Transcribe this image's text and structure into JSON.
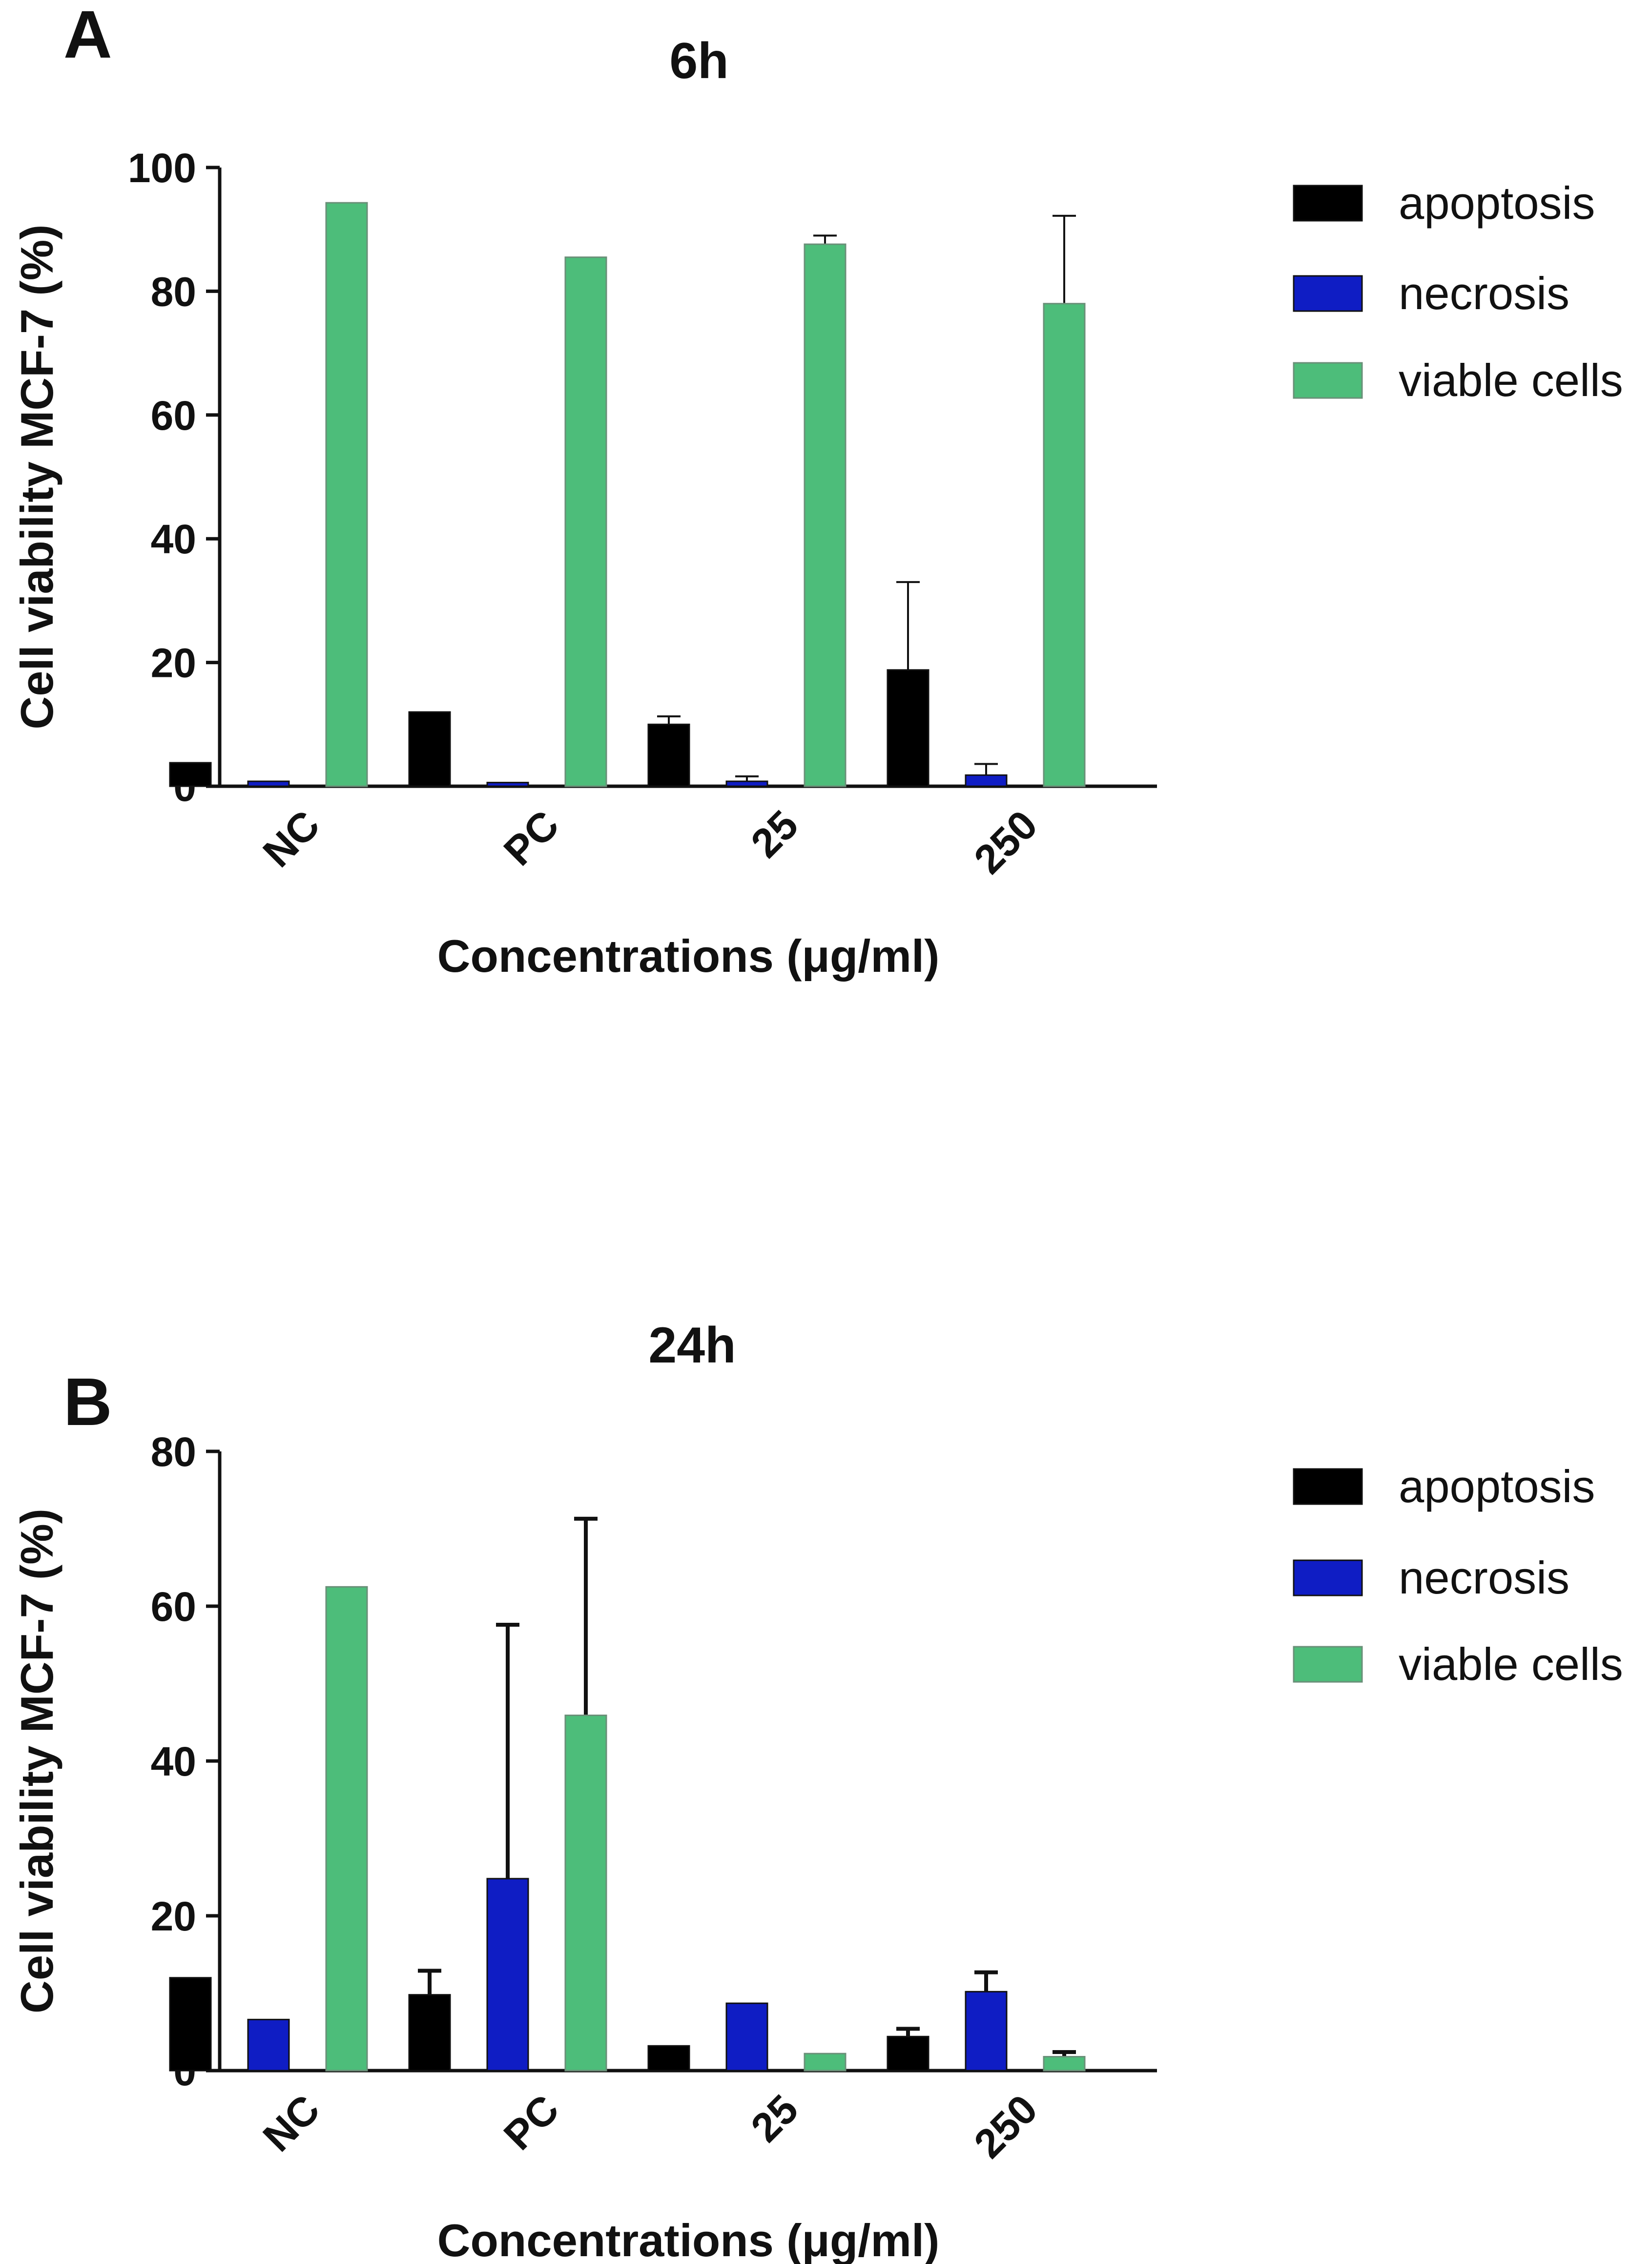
{
  "chart_data": [
    {
      "panel": "A",
      "type": "bar",
      "title": "6h",
      "xlabel": "Concentrations (μg/ml)",
      "ylabel": "Cell viability MCF-7 (%)",
      "categories": [
        "NC",
        "PC",
        "25",
        "250"
      ],
      "ylim": [
        0,
        100
      ],
      "yticks": [
        0,
        20,
        40,
        60,
        80,
        100
      ],
      "legend_position": "right",
      "grid": false,
      "series": [
        {
          "name": "apoptosis",
          "color": "#000000",
          "values": [
            3.8,
            12.0,
            10.0,
            18.8
          ],
          "errors": [
            0,
            0,
            1.3,
            14.2
          ]
        },
        {
          "name": "necrosis",
          "color": "#0f1dc4",
          "values": [
            0.8,
            0.6,
            0.8,
            1.8
          ],
          "errors": [
            0,
            0,
            0.8,
            1.8
          ]
        },
        {
          "name": "viable cells",
          "color": "#4dbd7a",
          "values": [
            94.3,
            85.5,
            87.6,
            78.0
          ],
          "errors": [
            0,
            0,
            1.4,
            14.2
          ]
        }
      ]
    },
    {
      "panel": "B",
      "type": "bar",
      "title": "24h",
      "xlabel": "Concentrations (μg/ml)",
      "ylabel": "Cell viability MCF-7 (%)",
      "categories": [
        "NC",
        "PC",
        "25",
        "250"
      ],
      "ylim": [
        0,
        80
      ],
      "yticks": [
        0,
        20,
        40,
        60,
        80
      ],
      "legend_position": "right",
      "grid": false,
      "series": [
        {
          "name": "apoptosis",
          "color": "#000000",
          "values": [
            12.0,
            9.8,
            3.2,
            4.4
          ],
          "errors": [
            0,
            3.1,
            0,
            1.0
          ]
        },
        {
          "name": "necrosis",
          "color": "#0f1dc4",
          "values": [
            6.6,
            24.8,
            8.7,
            10.2
          ],
          "errors": [
            0,
            32.8,
            0,
            2.5
          ]
        },
        {
          "name": "viable cells",
          "color": "#4dbd7a",
          "values": [
            62.5,
            45.9,
            2.2,
            1.8
          ],
          "errors": [
            0,
            25.4,
            0,
            0.6
          ]
        }
      ]
    }
  ]
}
